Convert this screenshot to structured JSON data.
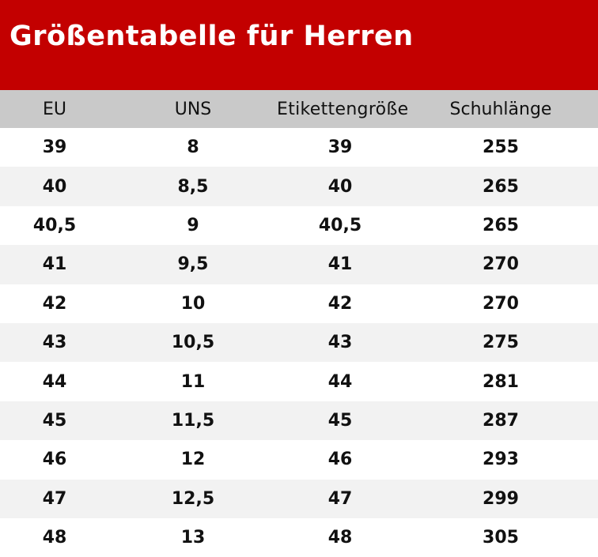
{
  "title": "Größentabelle für Herren",
  "colors": {
    "banner": "#c30000",
    "header_bg": "#c9c9c9",
    "row_alt": "#f2f2f2"
  },
  "table": {
    "headers": [
      "EU",
      "UNS",
      "Etikettengröße",
      "Schuhlänge"
    ],
    "rows": [
      [
        "39",
        "8",
        "39",
        "255"
      ],
      [
        "40",
        "8,5",
        "40",
        "265"
      ],
      [
        "40,5",
        "9",
        "40,5",
        "265"
      ],
      [
        "41",
        "9,5",
        "41",
        "270"
      ],
      [
        "42",
        "10",
        "42",
        "270"
      ],
      [
        "43",
        "10,5",
        "43",
        "275"
      ],
      [
        "44",
        "11",
        "44",
        "281"
      ],
      [
        "45",
        "11,5",
        "45",
        "287"
      ],
      [
        "46",
        "12",
        "46",
        "293"
      ],
      [
        "47",
        "12,5",
        "47",
        "299"
      ],
      [
        "48",
        "13",
        "48",
        "305"
      ]
    ]
  }
}
